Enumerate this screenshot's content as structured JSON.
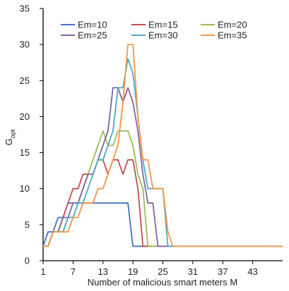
{
  "chart_data": {
    "type": "line",
    "title": "",
    "xlabel": "Number of malicious smart meters M",
    "ylabel": {
      "main": "G",
      "sub": "opt"
    },
    "xlim": [
      1,
      49
    ],
    "ylim": [
      0,
      35
    ],
    "xticks": [
      1,
      7,
      13,
      19,
      25,
      31,
      37,
      43
    ],
    "yticks": [
      0,
      5,
      10,
      15,
      20,
      25,
      30,
      35
    ],
    "grid": false,
    "legend_position": "top",
    "x": [
      1,
      2,
      3,
      4,
      5,
      6,
      7,
      8,
      9,
      10,
      11,
      12,
      13,
      14,
      15,
      16,
      17,
      18,
      19,
      20,
      21,
      22,
      23,
      24,
      25,
      26,
      27,
      28,
      29,
      30,
      31,
      32,
      33,
      34,
      35,
      36,
      37,
      38,
      39,
      40,
      41,
      42,
      43,
      44,
      45,
      46,
      47,
      48,
      49
    ],
    "series": [
      {
        "name": "Em=10",
        "color": "#4472c4",
        "values": [
          2,
          4,
          4,
          6,
          6,
          8,
          8,
          8,
          8,
          8,
          8,
          8,
          8,
          8,
          8,
          8,
          8,
          8,
          2,
          2,
          2,
          2,
          2,
          2,
          2,
          2,
          2,
          2,
          2,
          2,
          2,
          2,
          2,
          2,
          2,
          2,
          2,
          2,
          2,
          2,
          2,
          2,
          2,
          2,
          2,
          2,
          2,
          2,
          2
        ]
      },
      {
        "name": "Em=15",
        "color": "#c0504d",
        "values": [
          2,
          2,
          4,
          4,
          6,
          8,
          10,
          10,
          12,
          12,
          12,
          14,
          14,
          12,
          14,
          14,
          12,
          14,
          14,
          10,
          2,
          2,
          2,
          2,
          2,
          2,
          2,
          2,
          2,
          2,
          2,
          2,
          2,
          2,
          2,
          2,
          2,
          2,
          2,
          2,
          2,
          2,
          2,
          2,
          2,
          2,
          2,
          2,
          2
        ]
      },
      {
        "name": "Em=20",
        "color": "#9bbb59",
        "values": [
          2,
          2,
          4,
          4,
          4,
          6,
          6,
          8,
          10,
          12,
          14,
          16,
          18,
          16,
          16,
          18,
          18,
          18,
          16,
          12,
          10,
          2,
          2,
          2,
          2,
          2,
          2,
          2,
          2,
          2,
          2,
          2,
          2,
          2,
          2,
          2,
          2,
          2,
          2,
          2,
          2,
          2,
          2,
          2,
          2,
          2,
          2,
          2,
          2
        ]
      },
      {
        "name": "Em=25",
        "color": "#8064a2",
        "values": [
          2,
          2,
          4,
          4,
          6,
          6,
          8,
          8,
          10,
          12,
          12,
          14,
          16,
          18,
          24,
          24,
          22,
          24,
          22,
          18,
          12,
          8,
          8,
          2,
          2,
          2,
          2,
          2,
          2,
          2,
          2,
          2,
          2,
          2,
          2,
          2,
          2,
          2,
          2,
          2,
          2,
          2,
          2,
          2,
          2,
          2,
          2,
          2,
          2
        ]
      },
      {
        "name": "Em=30",
        "color": "#4bacc6",
        "values": [
          2,
          2,
          4,
          4,
          4,
          6,
          6,
          8,
          8,
          10,
          12,
          14,
          14,
          16,
          18,
          24,
          24,
          28,
          26,
          20,
          14,
          10,
          10,
          10,
          10,
          2,
          2,
          2,
          2,
          2,
          2,
          2,
          2,
          2,
          2,
          2,
          2,
          2,
          2,
          2,
          2,
          2,
          2,
          2,
          2,
          2,
          2,
          2,
          2
        ]
      },
      {
        "name": "Em=35",
        "color": "#f79646",
        "values": [
          2,
          2,
          4,
          4,
          4,
          4,
          6,
          6,
          8,
          8,
          8,
          10,
          10,
          12,
          14,
          16,
          22,
          30,
          30,
          20,
          14,
          14,
          10,
          10,
          10,
          4,
          2,
          2,
          2,
          2,
          2,
          2,
          2,
          2,
          2,
          2,
          2,
          2,
          2,
          2,
          2,
          2,
          2,
          2,
          2,
          2,
          2,
          2,
          2
        ]
      }
    ]
  }
}
